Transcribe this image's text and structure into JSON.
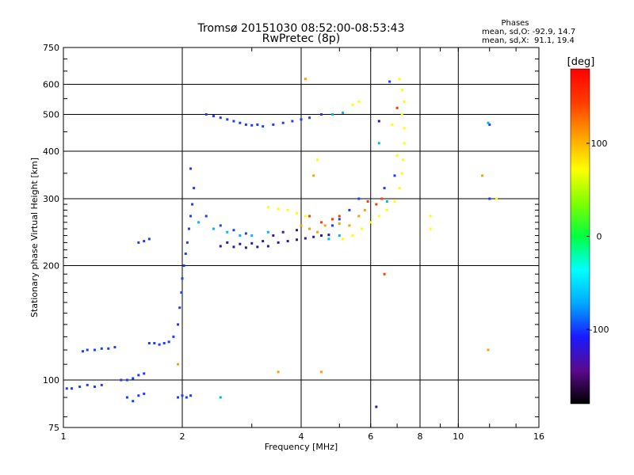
{
  "chart_data": {
    "type": "scatter",
    "title": "Tromsø 20151030 08:52:00-08:53:43",
    "subtitle": "RwPretec (8p)",
    "xlabel": "Frequency [MHz]",
    "ylabel": "Stationary phase Virtual Height [km]",
    "x_scale": "log",
    "y_scale": "log",
    "xlim": [
      1,
      16
    ],
    "ylim": [
      75,
      750
    ],
    "x_ticks": [
      1,
      2,
      4,
      6,
      8,
      10,
      16
    ],
    "y_ticks": [
      75,
      100,
      200,
      300,
      400,
      500,
      600,
      750
    ],
    "grid": true,
    "phase_stats": {
      "title": "Phases",
      "line_o": "mean, sd,O: -92.9, 14.7",
      "line_x": "mean, sd,X:  91.1, 19.4"
    },
    "colorbar": {
      "label": "[deg]",
      "min": -180,
      "max": 180,
      "ticks": [
        100,
        0,
        -100
      ],
      "colors": [
        "#000000",
        "#5a0a8c",
        "#1a1aff",
        "#00aaff",
        "#00ffff",
        "#00ff40",
        "#80ff00",
        "#ffff00",
        "#ffa000",
        "#ff3c00",
        "#ff0000"
      ]
    },
    "series": [
      {
        "color": "#1a3cff",
        "points": [
          [
            1.02,
            95
          ],
          [
            1.05,
            95
          ],
          [
            1.1,
            96
          ],
          [
            1.15,
            97
          ],
          [
            1.2,
            96
          ],
          [
            1.25,
            97
          ],
          [
            1.12,
            119
          ],
          [
            1.15,
            120
          ],
          [
            1.2,
            120
          ],
          [
            1.25,
            121
          ],
          [
            1.3,
            121
          ],
          [
            1.35,
            122
          ],
          [
            1.4,
            100
          ],
          [
            1.45,
            100
          ],
          [
            1.5,
            101
          ],
          [
            1.55,
            103
          ],
          [
            1.6,
            104
          ],
          [
            1.45,
            90
          ],
          [
            1.5,
            88
          ],
          [
            1.55,
            91
          ],
          [
            1.6,
            92
          ],
          [
            1.65,
            125
          ],
          [
            1.7,
            125
          ],
          [
            1.75,
            124
          ],
          [
            1.8,
            125
          ],
          [
            1.85,
            126
          ],
          [
            1.9,
            130
          ],
          [
            1.95,
            140
          ],
          [
            1.97,
            155
          ],
          [
            1.99,
            170
          ],
          [
            2.0,
            185
          ],
          [
            2.02,
            200
          ],
          [
            2.04,
            215
          ],
          [
            2.06,
            230
          ],
          [
            2.08,
            250
          ],
          [
            2.1,
            270
          ],
          [
            2.12,
            290
          ],
          [
            2.14,
            320
          ],
          [
            2.1,
            360
          ],
          [
            1.95,
            90
          ],
          [
            2.0,
            91
          ],
          [
            2.05,
            90
          ],
          [
            2.1,
            91
          ],
          [
            1.55,
            230
          ],
          [
            1.6,
            232
          ],
          [
            1.65,
            235
          ],
          [
            2.3,
            500
          ],
          [
            2.4,
            495
          ],
          [
            2.5,
            490
          ],
          [
            2.6,
            485
          ],
          [
            2.7,
            480
          ],
          [
            2.8,
            475
          ],
          [
            2.9,
            470
          ],
          [
            3.0,
            468
          ],
          [
            3.1,
            470
          ],
          [
            3.2,
            465
          ],
          [
            3.4,
            470
          ],
          [
            3.6,
            475
          ],
          [
            3.8,
            480
          ],
          [
            4.0,
            485
          ],
          [
            4.2,
            490
          ],
          [
            4.5,
            500
          ],
          [
            2.3,
            270
          ],
          [
            2.5,
            255
          ],
          [
            2.7,
            248
          ],
          [
            2.9,
            243
          ],
          [
            4.8,
            255
          ],
          [
            5.0,
            265
          ],
          [
            5.3,
            280
          ],
          [
            5.6,
            300
          ],
          [
            6.5,
            320
          ],
          [
            6.9,
            345
          ],
          [
            6.7,
            610
          ],
          [
            12.0,
            300
          ],
          [
            12.0,
            470
          ]
        ]
      },
      {
        "color": "#2a1aa0",
        "points": [
          [
            2.5,
            225
          ],
          [
            2.7,
            224
          ],
          [
            2.9,
            223
          ],
          [
            3.1,
            224
          ],
          [
            3.3,
            225
          ],
          [
            3.5,
            230
          ],
          [
            3.7,
            232
          ],
          [
            3.9,
            234
          ],
          [
            4.1,
            236
          ],
          [
            4.3,
            238
          ],
          [
            4.5,
            240
          ],
          [
            4.7,
            241
          ],
          [
            2.6,
            230
          ],
          [
            2.8,
            228
          ],
          [
            3.0,
            229
          ],
          [
            3.2,
            232
          ],
          [
            3.4,
            240
          ],
          [
            3.6,
            245
          ],
          [
            3.9,
            248
          ],
          [
            6.2,
            85
          ],
          [
            6.3,
            480
          ]
        ]
      },
      {
        "color": "#00b4ff",
        "points": [
          [
            2.2,
            260
          ],
          [
            2.4,
            250
          ],
          [
            2.6,
            245
          ],
          [
            2.8,
            240
          ],
          [
            3.0,
            240
          ],
          [
            3.3,
            245
          ],
          [
            4.7,
            235
          ],
          [
            5.0,
            240
          ],
          [
            6.6,
            295
          ],
          [
            6.3,
            420
          ],
          [
            11.9,
            475
          ],
          [
            2.5,
            90
          ],
          [
            4.8,
            500
          ],
          [
            5.1,
            505
          ]
        ]
      },
      {
        "color": "#ffff00",
        "points": [
          [
            3.3,
            285
          ],
          [
            3.5,
            282
          ],
          [
            3.7,
            280
          ],
          [
            3.9,
            275
          ],
          [
            4.1,
            270
          ],
          [
            5.1,
            235
          ],
          [
            5.4,
            240
          ],
          [
            5.7,
            250
          ],
          [
            6.0,
            260
          ],
          [
            6.3,
            270
          ],
          [
            6.6,
            280
          ],
          [
            6.9,
            295
          ],
          [
            7.1,
            320
          ],
          [
            7.2,
            350
          ],
          [
            7.25,
            380
          ],
          [
            7.3,
            420
          ],
          [
            7.3,
            460
          ],
          [
            7.2,
            500
          ],
          [
            7.3,
            540
          ],
          [
            7.2,
            580
          ],
          [
            7.1,
            620
          ],
          [
            7.0,
            390
          ],
          [
            6.8,
            470
          ],
          [
            5.4,
            530
          ],
          [
            5.6,
            540
          ],
          [
            4.4,
            380
          ],
          [
            8.5,
            270
          ],
          [
            8.5,
            250
          ],
          [
            12.5,
            300
          ]
        ]
      },
      {
        "color": "#ffa000",
        "points": [
          [
            4.0,
            255
          ],
          [
            4.2,
            250
          ],
          [
            4.4,
            245
          ],
          [
            4.6,
            255
          ],
          [
            4.8,
            265
          ],
          [
            5.0,
            258
          ],
          [
            5.3,
            255
          ],
          [
            5.6,
            270
          ],
          [
            5.8,
            280
          ],
          [
            4.5,
            105
          ],
          [
            3.5,
            105
          ],
          [
            4.1,
            620
          ],
          [
            4.3,
            345
          ],
          [
            11.5,
            345
          ],
          [
            1.95,
            110
          ],
          [
            11.9,
            120
          ]
        ]
      },
      {
        "color": "#ff3c00",
        "points": [
          [
            4.2,
            270
          ],
          [
            4.5,
            260
          ],
          [
            4.8,
            265
          ],
          [
            5.0,
            270
          ],
          [
            6.2,
            290
          ],
          [
            6.5,
            190
          ],
          [
            5.9,
            295
          ],
          [
            6.4,
            300
          ],
          [
            7.0,
            520
          ]
        ]
      }
    ]
  }
}
